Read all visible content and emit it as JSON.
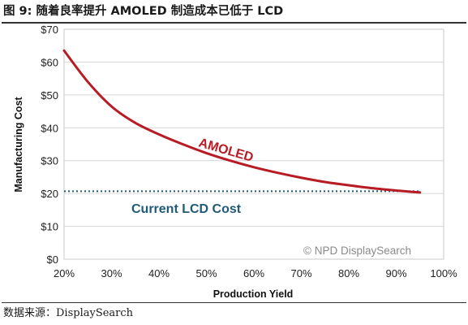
{
  "figure": {
    "title": "图 9: 随着良率提升 AMOLED 制造成本已低于 LCD",
    "source": "数据来源：DisplaySearch"
  },
  "chart_data": {
    "type": "line",
    "xlabel": "Production Yield",
    "ylabel": "Manufacturing Cost",
    "xlim": [
      0.2,
      1.0
    ],
    "ylim": [
      0,
      70
    ],
    "x_ticks": [
      "20%",
      "30%",
      "40%",
      "50%",
      "60%",
      "70%",
      "80%",
      "90%",
      "100%"
    ],
    "y_ticks": [
      "$0",
      "$10",
      "$20",
      "$30",
      "$40",
      "$50",
      "$60",
      "$70"
    ],
    "grid": "horizontal",
    "series": [
      {
        "name": "AMOLED",
        "color": "#b71c24",
        "x": [
          0.2,
          0.25,
          0.3,
          0.35,
          0.4,
          0.45,
          0.5,
          0.55,
          0.6,
          0.65,
          0.7,
          0.75,
          0.8,
          0.85,
          0.9,
          0.95
        ],
        "y": [
          63.5,
          54.0,
          46.5,
          41.5,
          38.0,
          35.0,
          32.3,
          30.0,
          28.0,
          26.3,
          24.8,
          23.5,
          22.5,
          21.6,
          20.9,
          20.3
        ]
      }
    ],
    "reference_lines": [
      {
        "name": "Current LCD Cost",
        "y": 20.7,
        "style": "dotted",
        "color": "#1f5a78",
        "x_range": [
          0.2,
          0.95
        ]
      }
    ],
    "annotations": {
      "amoled_label": "AMOLED",
      "lcd_label": "Current LCD Cost",
      "credit": "© NPD DisplaySearch"
    }
  }
}
